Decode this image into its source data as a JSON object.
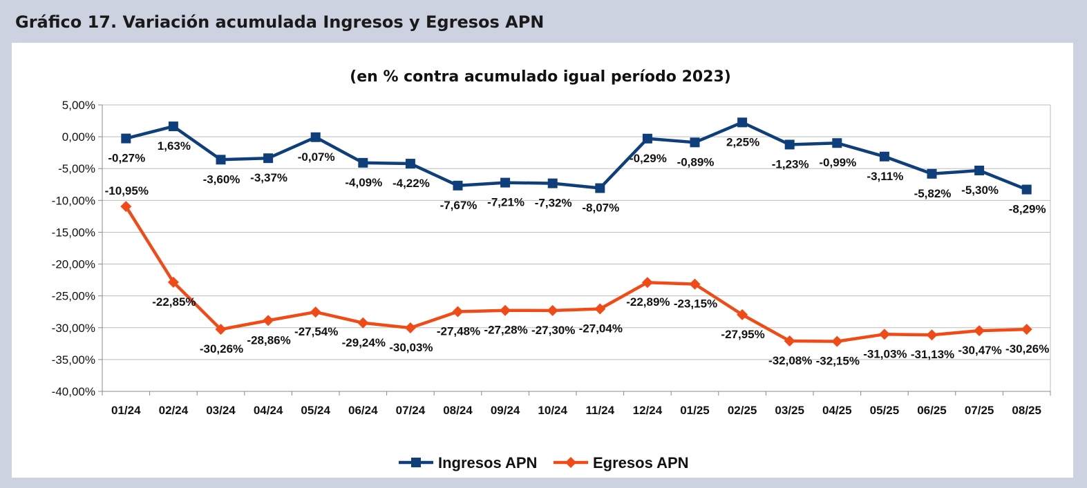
{
  "header": {
    "title": "Gráfico 17. Variación acumulada Ingresos y Egresos APN"
  },
  "chart_data": {
    "type": "line",
    "title": "(en % contra acumulado igual período 2023)",
    "xlabel": "",
    "ylabel": "",
    "ylim": [
      -40,
      5
    ],
    "ytick_step": 5,
    "y_tick_labels": [
      "5,00%",
      "0,00%",
      "-5,00%",
      "-10,00%",
      "-15,00%",
      "-20,00%",
      "-25,00%",
      "-30,00%",
      "-35,00%",
      "-40,00%"
    ],
    "grid": true,
    "legend_position": "bottom",
    "categories": [
      "01/24",
      "02/24",
      "03/24",
      "04/24",
      "05/24",
      "06/24",
      "07/24",
      "08/24",
      "09/24",
      "10/24",
      "11/24",
      "12/24",
      "01/25",
      "02/25",
      "03/25",
      "04/25",
      "05/25",
      "06/25",
      "07/25",
      "08/25"
    ],
    "series": [
      {
        "name": "Ingresos APN",
        "color": "#0f3f7a",
        "marker": "square",
        "values": [
          -0.27,
          1.63,
          -3.6,
          -3.37,
          -0.07,
          -4.09,
          -4.22,
          -7.67,
          -7.21,
          -7.32,
          -8.07,
          -0.29,
          -0.89,
          2.25,
          -1.23,
          -0.99,
          -3.11,
          -5.82,
          -5.3,
          -8.29
        ],
        "labels": [
          "-0,27%",
          "1,63%",
          "-3,60%",
          "-3,37%",
          "-0,07%",
          "-4,09%",
          "-4,22%",
          "-7,67%",
          "-7,21%",
          "-7,32%",
          "-8,07%",
          "-0,29%",
          "-0,89%",
          "2,25%",
          "-1,23%",
          "-0,99%",
          "-3,11%",
          "-5,82%",
          "-5,30%",
          "-8,29%"
        ]
      },
      {
        "name": "Egresos APN",
        "color": "#f04a16",
        "marker": "diamond",
        "values": [
          -10.95,
          -22.85,
          -30.26,
          -28.86,
          -27.54,
          -29.24,
          -30.03,
          -27.48,
          -27.28,
          -27.3,
          -27.04,
          -22.89,
          -23.15,
          -27.95,
          -32.08,
          -32.15,
          -31.03,
          -31.13,
          -30.47,
          -30.26
        ],
        "labels": [
          "-10,95%",
          "-22,85%",
          "-30,26%",
          "-28,86%",
          "-27,54%",
          "-29,24%",
          "-30,03%",
          "-27,48%",
          "-27,28%",
          "-27,30%",
          "-27,04%",
          "-22,89%",
          "-23,15%",
          "-27,95%",
          "-32,08%",
          "-32,15%",
          "-31,03%",
          "-31,13%",
          "-30,47%",
          "-30,26%"
        ]
      }
    ]
  }
}
